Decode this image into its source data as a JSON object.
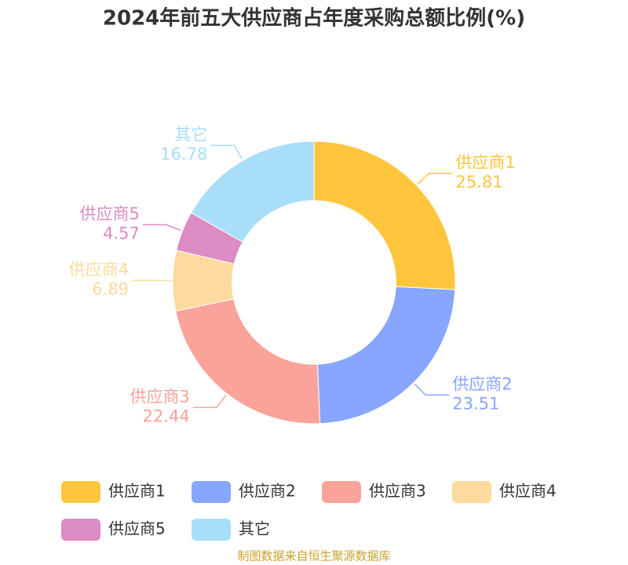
{
  "chart_data": {
    "type": "pie",
    "title": "2024年前五大供应商占年度采购总额比例(%)",
    "categories": [
      "供应商1",
      "供应商2",
      "供应商3",
      "供应商4",
      "供应商5",
      "其它"
    ],
    "values": [
      25.81,
      23.51,
      22.44,
      6.89,
      4.57,
      16.78
    ],
    "colors": [
      "#ffc53d",
      "#86a6ff",
      "#f9a39a",
      "#ffda9e",
      "#dc8bc3",
      "#a8def8"
    ],
    "inner_radius_ratio": 0.58,
    "source": "制图数据来自恒生聚源数据库"
  }
}
